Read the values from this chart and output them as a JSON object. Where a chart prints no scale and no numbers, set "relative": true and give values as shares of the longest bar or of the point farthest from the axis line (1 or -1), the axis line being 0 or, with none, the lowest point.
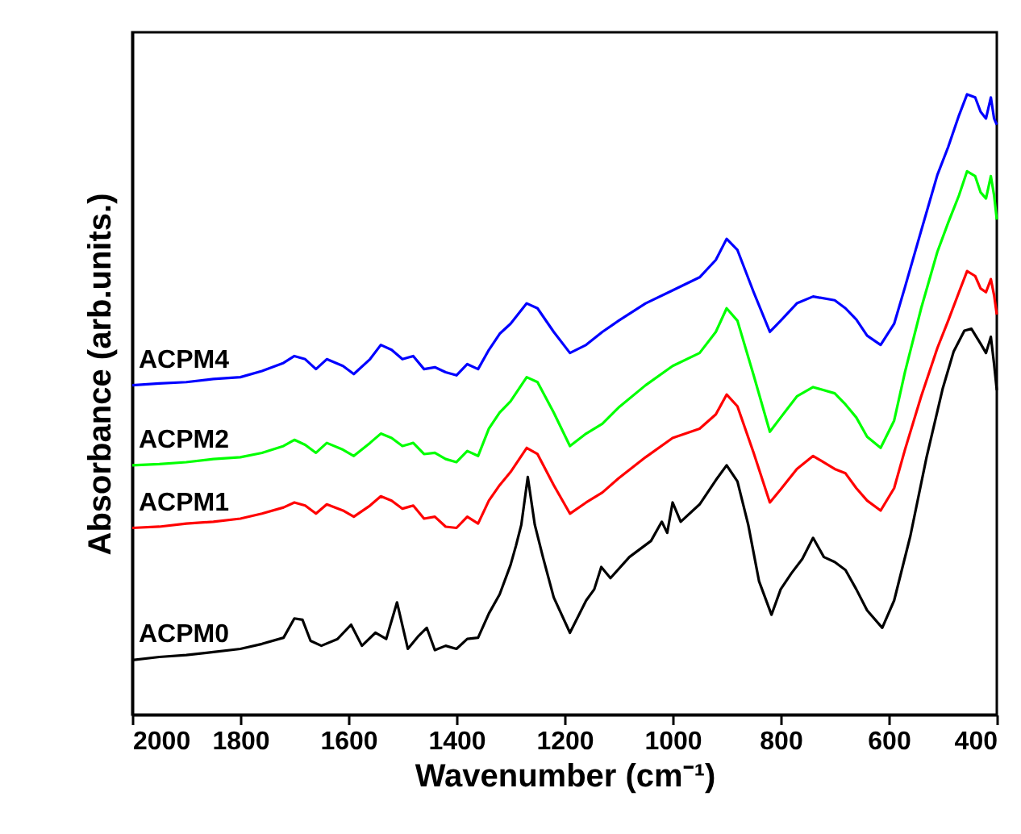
{
  "chart_data": {
    "type": "line",
    "xlabel": "Wavenumber (cm⁻¹)",
    "ylabel": "Absorbance (arb.units.)",
    "relative": true,
    "xlim": [
      2000,
      400
    ],
    "xticks": [
      2000,
      1800,
      1600,
      1400,
      1200,
      1000,
      800,
      600,
      400
    ],
    "grid": false,
    "line_style": "solid",
    "marker": "none",
    "series": [
      {
        "name": "ACPM4",
        "color": "#0000ff",
        "x": [
          2000,
          1950,
          1900,
          1850,
          1800,
          1760,
          1720,
          1700,
          1680,
          1660,
          1640,
          1610,
          1590,
          1560,
          1540,
          1520,
          1500,
          1480,
          1460,
          1440,
          1420,
          1400,
          1380,
          1360,
          1340,
          1320,
          1300,
          1270,
          1250,
          1220,
          1190,
          1160,
          1130,
          1100,
          1050,
          1000,
          950,
          920,
          900,
          880,
          850,
          820,
          800,
          770,
          740,
          700,
          680,
          660,
          640,
          615,
          590,
          570,
          540,
          510,
          490,
          470,
          455,
          440,
          430,
          420,
          411,
          405,
          400
        ],
        "values": [
          0.531,
          0.534,
          0.536,
          0.541,
          0.544,
          0.554,
          0.567,
          0.578,
          0.573,
          0.557,
          0.573,
          0.562,
          0.549,
          0.573,
          0.596,
          0.588,
          0.573,
          0.578,
          0.557,
          0.56,
          0.552,
          0.547,
          0.565,
          0.557,
          0.588,
          0.614,
          0.63,
          0.663,
          0.655,
          0.617,
          0.583,
          0.596,
          0.617,
          0.635,
          0.663,
          0.684,
          0.705,
          0.733,
          0.767,
          0.749,
          0.681,
          0.617,
          0.635,
          0.663,
          0.674,
          0.668,
          0.655,
          0.637,
          0.611,
          0.596,
          0.63,
          0.689,
          0.78,
          0.87,
          0.915,
          0.966,
          1.0,
          0.995,
          0.972,
          0.961,
          0.995,
          0.961,
          0.951
        ]
      },
      {
        "name": "ACPM2",
        "color": "#00ff00",
        "x": [
          2000,
          1950,
          1900,
          1850,
          1800,
          1760,
          1720,
          1700,
          1680,
          1660,
          1640,
          1610,
          1590,
          1560,
          1540,
          1520,
          1500,
          1480,
          1460,
          1440,
          1420,
          1400,
          1380,
          1360,
          1340,
          1320,
          1300,
          1270,
          1250,
          1220,
          1190,
          1160,
          1130,
          1100,
          1050,
          1000,
          950,
          920,
          900,
          880,
          850,
          820,
          800,
          770,
          740,
          700,
          680,
          660,
          640,
          615,
          590,
          570,
          540,
          510,
          490,
          470,
          455,
          440,
          430,
          420,
          411,
          405,
          400
        ],
        "values": [
          0.402,
          0.404,
          0.407,
          0.412,
          0.415,
          0.422,
          0.433,
          0.443,
          0.435,
          0.422,
          0.438,
          0.427,
          0.417,
          0.438,
          0.453,
          0.446,
          0.433,
          0.438,
          0.42,
          0.422,
          0.412,
          0.407,
          0.425,
          0.417,
          0.461,
          0.487,
          0.505,
          0.544,
          0.536,
          0.487,
          0.433,
          0.453,
          0.469,
          0.495,
          0.531,
          0.562,
          0.583,
          0.617,
          0.655,
          0.635,
          0.547,
          0.456,
          0.479,
          0.513,
          0.528,
          0.518,
          0.5,
          0.479,
          0.448,
          0.43,
          0.474,
          0.552,
          0.655,
          0.746,
          0.793,
          0.837,
          0.876,
          0.868,
          0.842,
          0.832,
          0.868,
          0.837,
          0.798
        ]
      },
      {
        "name": "ACPM1",
        "color": "#ff0000",
        "x": [
          2000,
          1950,
          1900,
          1850,
          1800,
          1760,
          1720,
          1700,
          1680,
          1660,
          1640,
          1610,
          1590,
          1560,
          1540,
          1520,
          1500,
          1480,
          1460,
          1440,
          1420,
          1400,
          1380,
          1360,
          1340,
          1320,
          1300,
          1270,
          1250,
          1220,
          1190,
          1160,
          1130,
          1100,
          1050,
          1000,
          950,
          920,
          900,
          880,
          850,
          820,
          800,
          770,
          740,
          700,
          680,
          660,
          640,
          615,
          590,
          570,
          540,
          510,
          490,
          470,
          455,
          440,
          430,
          420,
          411,
          405,
          400
        ],
        "values": [
          0.301,
          0.303,
          0.308,
          0.311,
          0.316,
          0.324,
          0.334,
          0.342,
          0.337,
          0.324,
          0.339,
          0.329,
          0.319,
          0.337,
          0.352,
          0.345,
          0.332,
          0.337,
          0.316,
          0.319,
          0.303,
          0.301,
          0.319,
          0.308,
          0.345,
          0.37,
          0.391,
          0.43,
          0.42,
          0.37,
          0.324,
          0.342,
          0.358,
          0.381,
          0.415,
          0.446,
          0.461,
          0.484,
          0.516,
          0.497,
          0.422,
          0.342,
          0.363,
          0.396,
          0.417,
          0.396,
          0.389,
          0.365,
          0.345,
          0.329,
          0.365,
          0.427,
          0.513,
          0.591,
          0.635,
          0.681,
          0.715,
          0.707,
          0.687,
          0.681,
          0.702,
          0.676,
          0.645
        ]
      },
      {
        "name": "ACPM0",
        "color": "#000000",
        "x": [
          2000,
          1950,
          1900,
          1850,
          1800,
          1760,
          1720,
          1700,
          1685,
          1670,
          1650,
          1620,
          1595,
          1575,
          1550,
          1530,
          1510,
          1490,
          1470,
          1455,
          1440,
          1420,
          1400,
          1380,
          1360,
          1340,
          1320,
          1300,
          1290,
          1280,
          1268,
          1255,
          1240,
          1220,
          1190,
          1160,
          1145,
          1132,
          1115,
          1080,
          1040,
          1020,
          1010,
          1000,
          985,
          950,
          920,
          900,
          880,
          860,
          840,
          817,
          800,
          780,
          760,
          740,
          720,
          700,
          680,
          660,
          640,
          612,
          590,
          560,
          530,
          500,
          480,
          460,
          447,
          430,
          420,
          411,
          405,
          400
        ],
        "values": [
          0.088,
          0.093,
          0.096,
          0.101,
          0.106,
          0.114,
          0.124,
          0.155,
          0.153,
          0.119,
          0.111,
          0.122,
          0.145,
          0.111,
          0.132,
          0.122,
          0.181,
          0.106,
          0.127,
          0.14,
          0.104,
          0.111,
          0.106,
          0.122,
          0.124,
          0.163,
          0.194,
          0.241,
          0.272,
          0.306,
          0.383,
          0.306,
          0.254,
          0.189,
          0.132,
          0.184,
          0.202,
          0.238,
          0.22,
          0.254,
          0.28,
          0.311,
          0.293,
          0.342,
          0.311,
          0.339,
          0.378,
          0.402,
          0.376,
          0.306,
          0.215,
          0.161,
          0.202,
          0.228,
          0.251,
          0.285,
          0.254,
          0.246,
          0.233,
          0.202,
          0.168,
          0.14,
          0.184,
          0.288,
          0.415,
          0.526,
          0.585,
          0.619,
          0.622,
          0.598,
          0.583,
          0.609,
          0.565,
          0.523
        ]
      }
    ]
  }
}
